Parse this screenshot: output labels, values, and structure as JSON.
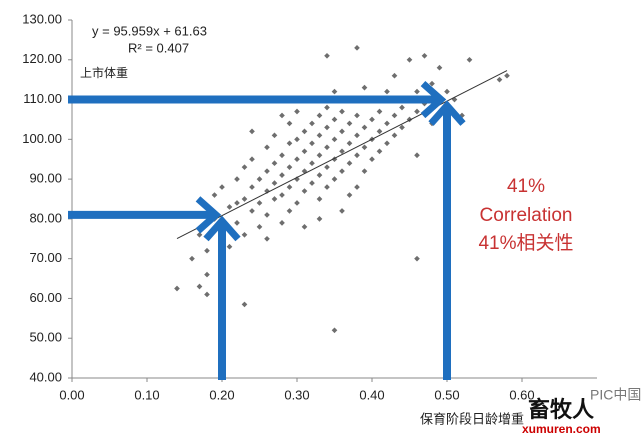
{
  "chart_data": {
    "type": "scatter",
    "equation": "y = 95.959x + 61.63",
    "r_squared": "R² = 0.407",
    "y_label": "上市体重",
    "x_label": "保育阶段日龄增重",
    "annotation": [
      "41%",
      "Correlation",
      "41%相关性"
    ],
    "watermark": [
      "PIC中国",
      "畜牧人",
      "xumuren.com"
    ],
    "color": "#6e6e6e",
    "xlim": [
      0,
      0.7
    ],
    "ylim": [
      40,
      130
    ],
    "xticks": [
      {
        "value": 0,
        "label": "0.00"
      },
      {
        "value": 0.1,
        "label": "0.10"
      },
      {
        "value": 0.2,
        "label": "0.20"
      },
      {
        "value": 0.3,
        "label": "0.30"
      },
      {
        "value": 0.4,
        "label": "0.40"
      },
      {
        "value": 0.5,
        "label": "0.50"
      },
      {
        "value": 0.6,
        "label": "0.60"
      }
    ],
    "yticks": [
      {
        "value": 40,
        "label": "40.00"
      },
      {
        "value": 50,
        "label": "50.00"
      },
      {
        "value": 60,
        "label": "60.00"
      },
      {
        "value": 70,
        "label": "70.00"
      },
      {
        "value": 80,
        "label": "80.00"
      },
      {
        "value": 90,
        "label": "90.00"
      },
      {
        "value": 100,
        "label": "100.00"
      },
      {
        "value": 110,
        "label": "110.00"
      },
      {
        "value": 120,
        "label": "120.00"
      },
      {
        "value": 130,
        "label": "130.00"
      }
    ],
    "trendline": {
      "slope": 95.959,
      "intercept": 61.63,
      "x": [
        0.14,
        0.58
      ]
    },
    "arrows": [
      {
        "x": 0.5,
        "y": 110
      },
      {
        "x": 0.2,
        "y": 81
      }
    ],
    "arrow_color": "#1f6fbf",
    "x": [
      0.14,
      0.17,
      0.18,
      0.18,
      0.23,
      0.35,
      0.46,
      0.57,
      0.58,
      0.53,
      0.49,
      0.38,
      0.34,
      0.46,
      0.47,
      0.45,
      0.16,
      0.17,
      0.18,
      0.19,
      0.19,
      0.2,
      0.2,
      0.21,
      0.21,
      0.22,
      0.22,
      0.23,
      0.23,
      0.23,
      0.24,
      0.24,
      0.24,
      0.25,
      0.25,
      0.25,
      0.26,
      0.26,
      0.26,
      0.26,
      0.27,
      0.27,
      0.27,
      0.27,
      0.28,
      0.28,
      0.28,
      0.28,
      0.29,
      0.29,
      0.29,
      0.29,
      0.3,
      0.3,
      0.3,
      0.3,
      0.3,
      0.31,
      0.31,
      0.31,
      0.31,
      0.31,
      0.32,
      0.32,
      0.32,
      0.32,
      0.32,
      0.33,
      0.33,
      0.33,
      0.33,
      0.33,
      0.34,
      0.34,
      0.34,
      0.34,
      0.34,
      0.35,
      0.35,
      0.35,
      0.35,
      0.35,
      0.36,
      0.36,
      0.36,
      0.36,
      0.36,
      0.37,
      0.37,
      0.37,
      0.37,
      0.38,
      0.38,
      0.38,
      0.38,
      0.39,
      0.39,
      0.39,
      0.39,
      0.4,
      0.4,
      0.4,
      0.4,
      0.41,
      0.41,
      0.41,
      0.42,
      0.42,
      0.42,
      0.43,
      0.43,
      0.43,
      0.44,
      0.44,
      0.45,
      0.45,
      0.46,
      0.46,
      0.47,
      0.48,
      0.48,
      0.5,
      0.51,
      0.52,
      0.26,
      0.29,
      0.33,
      0.37,
      0.24,
      0.28,
      0.22
    ],
    "values": [
      62.5,
      63,
      66,
      61,
      58.5,
      52,
      70,
      115,
      116,
      120,
      118,
      123,
      121,
      96,
      121,
      120,
      70,
      76,
      72,
      80,
      86,
      77,
      88,
      83,
      73,
      90,
      79,
      85,
      93,
      76,
      88,
      82,
      95,
      90,
      84,
      78,
      92,
      87,
      98,
      81,
      94,
      89,
      85,
      101,
      91,
      96,
      86,
      79,
      93,
      99,
      88,
      104,
      95,
      90,
      100,
      84,
      107,
      97,
      92,
      102,
      87,
      78,
      94,
      99,
      104,
      89,
      110,
      96,
      101,
      91,
      106,
      85,
      98,
      103,
      93,
      108,
      88,
      100,
      95,
      105,
      112,
      90,
      97,
      102,
      107,
      92,
      82,
      99,
      104,
      94,
      110,
      101,
      96,
      106,
      88,
      103,
      98,
      113,
      92,
      105,
      100,
      95,
      110,
      102,
      107,
      97,
      104,
      112,
      99,
      106,
      101,
      116,
      108,
      103,
      110,
      105,
      112,
      107,
      109,
      114,
      104,
      112,
      110,
      106,
      75,
      82,
      80,
      86,
      102,
      106,
      84
    ]
  }
}
